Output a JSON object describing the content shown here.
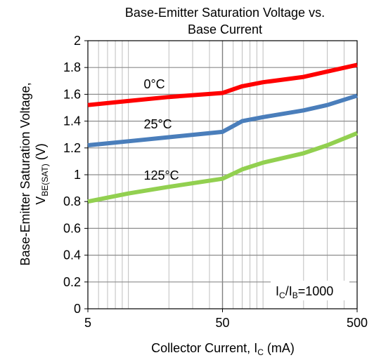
{
  "chart_data": {
    "type": "line",
    "title_lines": [
      "Base-Emitter Saturation Voltage vs.",
      "Base Current"
    ],
    "xlabel": {
      "text": "Collector Current, ",
      "symbol": "I",
      "sub": "C",
      "unit": " (mA)"
    },
    "ylabel": {
      "line1": "Base-Emitter Saturation Voltage,",
      "symbol": "V",
      "sub": "BE(SAT)",
      "unit": " (V)"
    },
    "x_scale": "log",
    "xlim": [
      5,
      500
    ],
    "ylim": [
      0,
      2
    ],
    "x_ticks": [
      5,
      50,
      500
    ],
    "x_tick_labels": [
      "5",
      "50",
      "500"
    ],
    "y_ticks": [
      0,
      0.2,
      0.4,
      0.6,
      0.8,
      1,
      1.2,
      1.4,
      1.6,
      1.8,
      2
    ],
    "y_tick_labels": [
      "0",
      "0.2",
      "0.4",
      "0.6",
      "0.8",
      "1",
      "1.2",
      "1.4",
      "1.6",
      "1.8",
      "2"
    ],
    "grid": true,
    "annotation": {
      "main": "I",
      "sub1": "C",
      "slash": "/I",
      "sub2": "B",
      "rest": "=1000"
    },
    "series": [
      {
        "name": "0°C",
        "color": "#ff0000",
        "x": [
          5,
          10,
          20,
          50,
          70,
          100,
          200,
          300,
          500
        ],
        "y": [
          1.52,
          1.55,
          1.58,
          1.61,
          1.66,
          1.69,
          1.73,
          1.77,
          1.82
        ]
      },
      {
        "name": "25°C",
        "color": "#4a7ebb",
        "x": [
          5,
          10,
          20,
          50,
          70,
          100,
          200,
          300,
          500
        ],
        "y": [
          1.22,
          1.25,
          1.28,
          1.32,
          1.4,
          1.43,
          1.48,
          1.52,
          1.59
        ]
      },
      {
        "name": "125°C",
        "color": "#92d050",
        "x": [
          5,
          10,
          20,
          50,
          70,
          100,
          200,
          300,
          500
        ],
        "y": [
          0.8,
          0.86,
          0.91,
          0.97,
          1.04,
          1.09,
          1.16,
          1.22,
          1.31
        ]
      }
    ]
  }
}
